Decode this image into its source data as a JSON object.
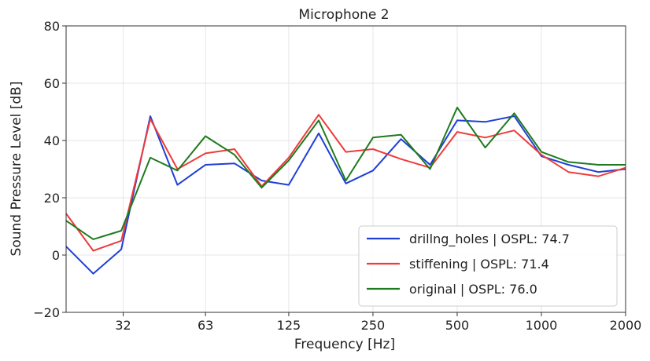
{
  "chart_data": {
    "type": "line",
    "title": "Microphone 2",
    "xlabel": "Frequency [Hz]",
    "ylabel": "Sound Pressure Level [dB]",
    "x_scale": "log",
    "xlim": [
      20,
      2000
    ],
    "ylim": [
      -20,
      80
    ],
    "grid": true,
    "legend_position": "bottom-right",
    "x_ticks": [
      {
        "value": 32,
        "label": "32"
      },
      {
        "value": 63,
        "label": "63"
      },
      {
        "value": 125,
        "label": "125"
      },
      {
        "value": 250,
        "label": "250"
      },
      {
        "value": 500,
        "label": "500"
      },
      {
        "value": 1000,
        "label": "1000"
      },
      {
        "value": 2000,
        "label": "2000"
      }
    ],
    "y_ticks": [
      {
        "value": -20,
        "label": "−20"
      },
      {
        "value": 0,
        "label": "0"
      },
      {
        "value": 20,
        "label": "20"
      },
      {
        "value": 40,
        "label": "40"
      },
      {
        "value": 60,
        "label": "60"
      },
      {
        "value": 80,
        "label": "80"
      }
    ],
    "x": [
      20,
      25,
      31.5,
      40,
      50,
      63,
      80,
      100,
      125,
      160,
      200,
      250,
      315,
      400,
      500,
      630,
      800,
      1000,
      1250,
      1600,
      2000
    ],
    "series": [
      {
        "name": "drillng_holes | OSPL: 74.7",
        "color": "#1f3fd6",
        "values": [
          3,
          -6.5,
          2,
          48.5,
          24.5,
          31.5,
          32,
          26,
          24.5,
          42.5,
          25,
          29.5,
          40.5,
          31.5,
          47,
          46.5,
          48.5,
          34.5,
          31.5,
          29,
          30
        ]
      },
      {
        "name": "stiffening | OSPL: 71.4",
        "color": "#ef3b3b",
        "values": [
          14.5,
          1.5,
          5,
          47.5,
          30,
          35.5,
          37,
          24,
          34,
          49,
          36,
          37,
          33.5,
          30.5,
          43,
          41,
          43.5,
          35,
          29,
          27.5,
          30.5
        ]
      },
      {
        "name": "original | OSPL: 76.0",
        "color": "#1e7a1e",
        "values": [
          12,
          5.5,
          8.5,
          34,
          29.5,
          41.5,
          35,
          23.5,
          33,
          47,
          26,
          41,
          42,
          30,
          51.5,
          37.5,
          49.5,
          36,
          32.5,
          31.5,
          31.5
        ]
      }
    ]
  }
}
